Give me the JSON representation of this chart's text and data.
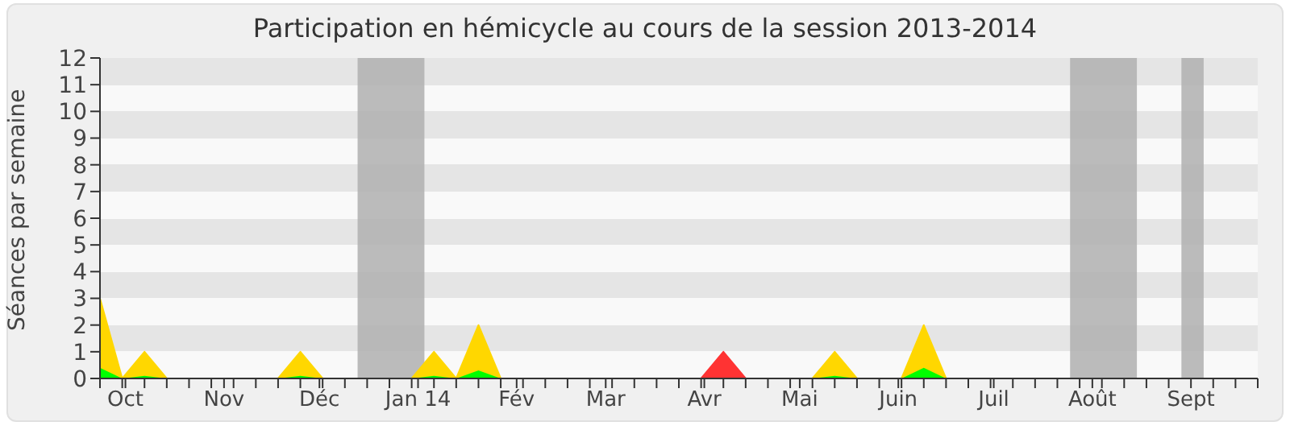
{
  "chart_data": {
    "type": "area",
    "title": "Participation en hémicycle au cours de la session 2013-2014",
    "ylabel": "Séances par semaine",
    "stacked": true,
    "legend": false,
    "x": [
      "2013-09-23",
      "2013-09-30",
      "2013-10-07",
      "2013-10-14",
      "2013-10-21",
      "2013-10-28",
      "2013-11-04",
      "2013-11-11",
      "2013-11-18",
      "2013-11-25",
      "2013-12-02",
      "2013-12-09",
      "2013-12-16",
      "2013-12-23",
      "2013-12-30",
      "2014-01-06",
      "2014-01-13",
      "2014-01-20",
      "2014-01-27",
      "2014-02-03",
      "2014-02-10",
      "2014-02-17",
      "2014-02-24",
      "2014-03-03",
      "2014-03-10",
      "2014-03-17",
      "2014-03-24",
      "2014-03-31",
      "2014-04-07",
      "2014-04-14",
      "2014-04-21",
      "2014-04-28",
      "2014-05-05",
      "2014-05-12",
      "2014-05-19",
      "2014-05-26",
      "2014-06-02",
      "2014-06-09",
      "2014-06-16",
      "2014-06-23",
      "2014-06-30",
      "2014-07-07",
      "2014-07-14",
      "2014-07-21",
      "2014-07-28",
      "2014-08-04",
      "2014-08-11",
      "2014-08-18",
      "2014-08-25",
      "2014-09-01",
      "2014-09-08",
      "2014-09-15",
      "2014-09-22"
    ],
    "xlim": [
      "2013-09-23",
      "2014-09-22"
    ],
    "xticks": [
      {
        "value": "2013-10-01",
        "label": "Oct"
      },
      {
        "value": "2013-11-01",
        "label": "Nov"
      },
      {
        "value": "2013-12-01",
        "label": "Déc"
      },
      {
        "value": "2014-01-01",
        "label": "Jan 14"
      },
      {
        "value": "2014-02-01",
        "label": "Fév"
      },
      {
        "value": "2014-03-01",
        "label": "Mar"
      },
      {
        "value": "2014-04-01",
        "label": "Avr"
      },
      {
        "value": "2014-05-01",
        "label": "Mai"
      },
      {
        "value": "2014-06-01",
        "label": "Juin"
      },
      {
        "value": "2014-07-01",
        "label": "Juil"
      },
      {
        "value": "2014-08-01",
        "label": "Août"
      },
      {
        "value": "2014-09-01",
        "label": "Sept"
      }
    ],
    "ylim": [
      0,
      12
    ],
    "yticks": [
      0,
      1,
      2,
      3,
      4,
      5,
      6,
      7,
      8,
      9,
      10,
      11,
      12
    ],
    "bands": [
      {
        "axis": "x",
        "from": "2013-12-13",
        "to": "2014-01-03",
        "color": "#b0b0b0"
      },
      {
        "axis": "x",
        "from": "2014-07-25",
        "to": "2014-08-15",
        "color": "#b0b0b0"
      },
      {
        "axis": "x",
        "from": "2014-08-29",
        "to": "2014-09-05",
        "color": "#b0b0b0"
      }
    ],
    "series": [
      {
        "color": "#00ff00",
        "values": [
          0.4,
          0,
          0.1,
          0,
          0,
          0,
          0,
          0,
          0,
          0.1,
          0,
          0,
          0,
          0,
          0,
          0.1,
          0,
          0.3,
          0,
          0,
          0,
          0,
          0,
          0,
          0,
          0,
          0,
          0,
          0,
          0,
          0,
          0,
          0,
          0.1,
          0,
          0,
          0,
          0.4,
          0,
          0,
          0,
          0,
          0,
          0,
          0,
          0,
          0,
          0,
          0,
          0,
          0,
          0,
          0
        ]
      },
      {
        "color": "#ffd700",
        "values": [
          2.6,
          0,
          0.9,
          0,
          0,
          0,
          0,
          0,
          0,
          0.9,
          0,
          0,
          0,
          0,
          0,
          0.9,
          0,
          1.7,
          0,
          0,
          0,
          0,
          0,
          0,
          0,
          0,
          0,
          0,
          0,
          0,
          0,
          0,
          0,
          0.9,
          0,
          0,
          0,
          1.6,
          0,
          0,
          0,
          0,
          0,
          0,
          0,
          0,
          0,
          0,
          0,
          0,
          0,
          0,
          0
        ]
      },
      {
        "color": "#ff3333",
        "values": [
          null,
          null,
          null,
          null,
          null,
          null,
          null,
          null,
          null,
          null,
          null,
          null,
          null,
          null,
          null,
          null,
          null,
          null,
          null,
          null,
          null,
          null,
          null,
          null,
          null,
          null,
          null,
          0,
          1,
          0,
          null,
          null,
          null,
          null,
          null,
          null,
          null,
          null,
          null,
          null,
          null,
          null,
          null,
          null,
          null,
          null,
          null,
          null,
          null,
          null,
          null,
          null,
          null
        ]
      }
    ]
  }
}
